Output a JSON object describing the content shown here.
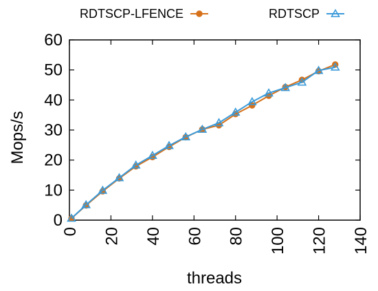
{
  "chart_data": {
    "type": "line",
    "title": "",
    "xlabel": "threads",
    "ylabel": "Mops/s",
    "xlim": [
      0,
      140
    ],
    "ylim": [
      0,
      60
    ],
    "xticks": [
      0,
      20,
      40,
      60,
      80,
      100,
      120,
      140
    ],
    "yticks": [
      0,
      10,
      20,
      30,
      40,
      50,
      60
    ],
    "xtick_labels": [
      "0",
      "20",
      "40",
      "60",
      "80",
      "100",
      "120",
      "140"
    ],
    "ytick_labels": [
      "0",
      "10",
      "20",
      "30",
      "40",
      "50",
      "60"
    ],
    "grid": false,
    "legend_position": "top",
    "series": [
      {
        "name": "RDTSCP-LFENCE",
        "color": "#d6711a",
        "marker": "circle",
        "x": [
          1,
          8,
          16,
          24,
          32,
          40,
          48,
          56,
          64,
          72,
          80,
          88,
          96,
          104,
          112,
          120,
          128
        ],
        "y": [
          0.6,
          4.9,
          9.6,
          13.9,
          17.9,
          21.0,
          24.4,
          27.6,
          30.2,
          31.6,
          35.3,
          38.2,
          41.4,
          44.3,
          46.7,
          49.6,
          51.8
        ]
      },
      {
        "name": "RDTSCP",
        "color": "#3a9ad9",
        "marker": "triangle",
        "x": [
          1,
          8,
          16,
          24,
          32,
          40,
          48,
          56,
          64,
          72,
          80,
          88,
          96,
          104,
          112,
          120,
          128
        ],
        "y": [
          0.6,
          5.1,
          9.9,
          14.1,
          18.3,
          21.5,
          24.8,
          27.7,
          30.2,
          32.4,
          35.9,
          39.4,
          42.3,
          44.1,
          45.9,
          49.8,
          50.9
        ]
      }
    ]
  }
}
